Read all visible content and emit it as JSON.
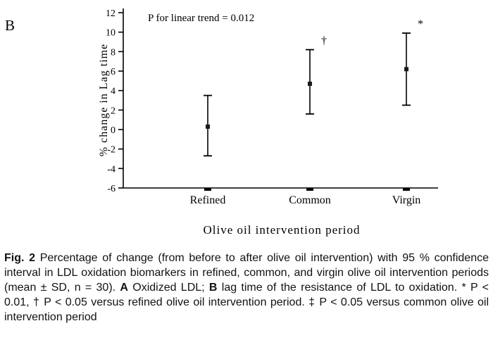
{
  "panel_label": "B",
  "chart_data": {
    "type": "errorbar",
    "annotation": "P for linear trend = 0.012",
    "categories": [
      "Refined",
      "Common",
      "Virgin"
    ],
    "means": [
      0.3,
      4.7,
      6.2
    ],
    "upper": [
      3.5,
      8.2,
      9.9
    ],
    "lower": [
      -2.7,
      1.6,
      2.5
    ],
    "sig_markers": [
      "",
      "†",
      "*"
    ],
    "ylabel": "% change in Lag time",
    "xlabel": "Olive oil intervention period",
    "ylim": [
      -6,
      12
    ],
    "ytick_step": 2,
    "grid": false,
    "legend": "none"
  },
  "colors": {
    "axis": "#000000",
    "marker": "#1a1a1a",
    "background": "#ffffff"
  },
  "caption": {
    "segments": [
      {
        "text": "Fig. 2",
        "bold": true
      },
      {
        "text": "  Percentage of change (from before to after olive oil intervention) with 95 % confidence interval in LDL oxidation biomarkers in refined, common, and virgin olive oil intervention periods (mean ± SD, n = 30). ",
        "bold": false
      },
      {
        "text": "A",
        "bold": true
      },
      {
        "text": " Oxidized LDL; ",
        "bold": false
      },
      {
        "text": "B",
        "bold": true
      },
      {
        "text": " lag time of the resistance of LDL to oxidation. * P < 0.01, † P < 0.05 versus refined olive oil intervention period. ‡ P < 0.05 versus common olive oil intervention period",
        "bold": false
      }
    ]
  }
}
